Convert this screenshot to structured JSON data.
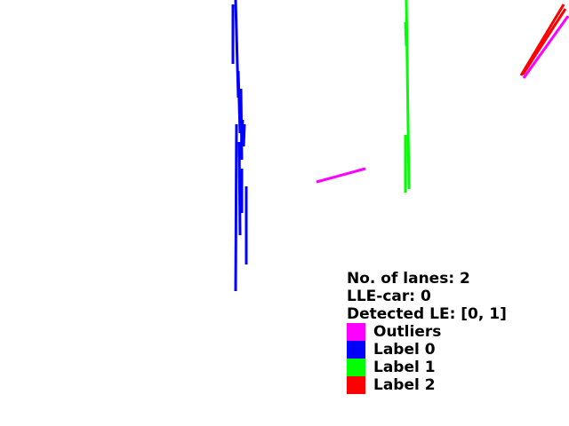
{
  "info": {
    "lanes_text": "No. of lanes: 2",
    "lle_car_text": "LLE-car: 0",
    "detected_le_text": "Detected LE: [0, 1]"
  },
  "legend": [
    {
      "label": "Outliers",
      "color": "#ff00ff"
    },
    {
      "label": "Label 0",
      "color": "#0000ff"
    },
    {
      "label": "Label 1",
      "color": "#00ff00"
    },
    {
      "label": "Label 2",
      "color": "#ff0000"
    }
  ]
}
